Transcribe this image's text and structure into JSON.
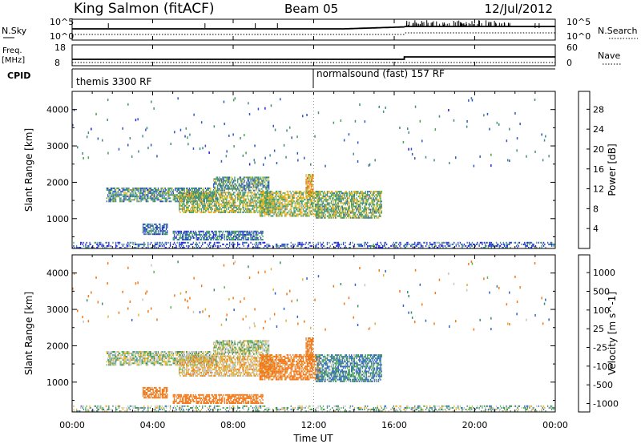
{
  "header": {
    "station": "King Salmon (fitACF)",
    "beam": "Beam 05",
    "date": "12/Jul/2012"
  },
  "strip": {
    "nsky_label": "N.Sky",
    "nsky_ticks": [
      "10^5",
      "10^0"
    ],
    "nsearch_label": "N.Search",
    "nsearch_ticks": [
      "10^5",
      "10^0"
    ],
    "freq_label": "Freq.",
    "freq_unit": "[MHz]",
    "freq_ticks": [
      "18",
      "8"
    ],
    "nave_label": "Nave",
    "nave_ticks": [
      "60",
      "0"
    ],
    "cpid_label": "CPID",
    "cpid_modes": [
      {
        "label": "themis 3300 RF",
        "start_hour": 0
      },
      {
        "label": "normalsound (fast) 157 RF",
        "start_hour": 12
      }
    ]
  },
  "panels": {
    "ylabel": "Slant Range [km]",
    "xlabel": "Time UT",
    "x_ticks": [
      "00:00",
      "04:00",
      "08:00",
      "12:00",
      "16:00",
      "20:00",
      "00:00"
    ],
    "y_ticks": [
      "1000",
      "2000",
      "3000",
      "4000"
    ]
  },
  "colorbars": {
    "power_label": "Power [dB]",
    "power_ticks": [
      "4",
      "8",
      "12",
      "16",
      "20",
      "24",
      "28"
    ],
    "power_colors": [
      "#2020e0",
      "#2e55c0",
      "#3f8a8a",
      "#44a055",
      "#d6c22a",
      "#f0a018",
      "#f07a10",
      "#e84a0a",
      "#e01010"
    ],
    "velocity_label": "Velocity [m s^-1]",
    "velocity_ticks": [
      "1000",
      "500",
      "100",
      "25",
      "-25",
      "-100",
      "-500",
      "-1000"
    ],
    "velocity_colors": [
      "#1a3ab0",
      "#2c62c8",
      "#3a8a6a",
      "#56b84a",
      "#c4c4c4",
      "#e0b030",
      "#f07818",
      "#e83c10",
      "#d80000"
    ]
  },
  "chart_data": {
    "type": "heatmap",
    "x_range_hours": [
      0,
      24
    ],
    "y_range_km": [
      180,
      4500
    ],
    "series": [
      {
        "name": "Power",
        "units": "dB",
        "range": [
          0,
          30
        ]
      },
      {
        "name": "Velocity",
        "units": "m s^-1",
        "range": [
          -1000,
          1000
        ]
      }
    ],
    "echo_regions": [
      {
        "t_start": 1.7,
        "t_end": 7.2,
        "r_start": 1450,
        "r_end": 1850,
        "power": 9,
        "velocity": 10
      },
      {
        "t_start": 5.3,
        "t_end": 10.0,
        "r_start": 1150,
        "r_end": 1700,
        "power": 13,
        "velocity": -50
      },
      {
        "t_start": 7.0,
        "t_end": 9.8,
        "r_start": 1750,
        "r_end": 2150,
        "power": 10,
        "velocity": 5
      },
      {
        "t_start": 9.3,
        "t_end": 12.3,
        "r_start": 1050,
        "r_end": 1750,
        "power": 14,
        "velocity": -170
      },
      {
        "t_start": 11.6,
        "t_end": 12.0,
        "r_start": 1600,
        "r_end": 2200,
        "power": 18,
        "velocity": -300
      },
      {
        "t_start": 12.1,
        "t_end": 15.4,
        "r_start": 1000,
        "r_end": 1750,
        "power": 12,
        "velocity": 80
      },
      {
        "t_start": 3.5,
        "t_end": 4.7,
        "r_start": 550,
        "r_end": 850,
        "power": 7,
        "velocity": -190
      },
      {
        "t_start": 5.0,
        "t_end": 9.5,
        "r_start": 400,
        "r_end": 650,
        "power": 7,
        "velocity": -240
      },
      {
        "t_start": 0.0,
        "t_end": 24.0,
        "r_start": 180,
        "r_end": 320,
        "power": 5,
        "velocity": 30
      }
    ]
  }
}
